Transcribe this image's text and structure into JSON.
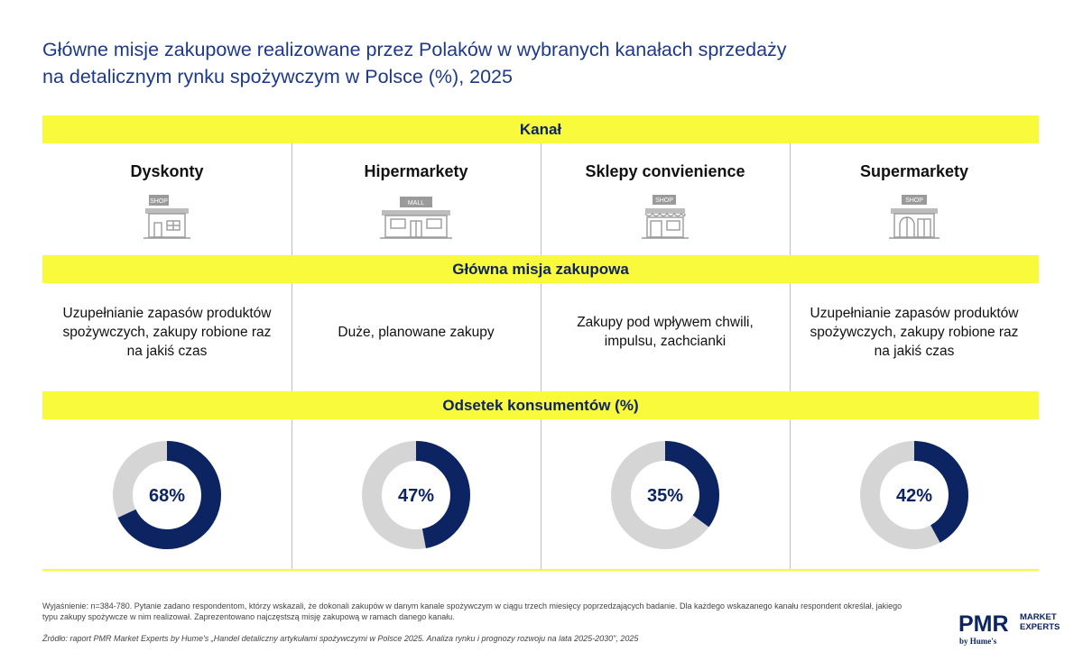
{
  "title_line1": "Główne misje zakupowe realizowane przez Polaków w wybranych kanałach sprzedaży",
  "title_line2": "na detalicznym rynku spożywczym w Polsce (%), 2025",
  "bands": {
    "kanal": "Kanał",
    "misja": "Główna misja zakupowa",
    "odsetek": "Odsetek konsumentów (%)"
  },
  "channels": [
    {
      "name": "Dyskonty",
      "icon": "shop-icon",
      "icon_label": "SHOP",
      "mission": "Uzupełnianie zapasów produktów spożywczych, zakupy robione raz na jakiś czas",
      "percent_label": "68%"
    },
    {
      "name": "Hipermarkety",
      "icon": "mall-icon",
      "icon_label": "MALL",
      "mission": "Duże, planowane zakupy",
      "percent_label": "47%"
    },
    {
      "name": "Sklepy convienience",
      "icon": "shop-awning-icon",
      "icon_label": "SHOP",
      "mission": "Zakupy pod wpływem chwili, impulsu, zachcianki",
      "percent_label": "35%"
    },
    {
      "name": "Supermarkety",
      "icon": "shop-arch-icon",
      "icon_label": "SHOP",
      "mission": "Uzupełnianie zapasów produktów spożywczych, zakupy robione raz na jakiś czas",
      "percent_label": "42%"
    }
  ],
  "chart_data": {
    "type": "pie",
    "categories": [
      "Dyskonty",
      "Hipermarkety",
      "Sklepy convienience",
      "Supermarkety"
    ],
    "values": [
      68,
      47,
      35,
      42
    ],
    "title": "Odsetek konsumentów (%)",
    "colors": {
      "filled": "#0c2461",
      "remainder": "#d5d5d5"
    }
  },
  "note": "Wyjaśnienie: n=384-780. Pytanie zadano respondentom, którzy wskazali, że dokonali zakupów w danym kanale spożywczym w ciągu trzech miesięcy poprzedzających badanie. Dla każdego wskazanego kanału respondent określał, jakiego typu zakupy spożywcze w nim realizował. Zaprezentowano najczęstszą misję zakupową w ramach danego kanału.",
  "source": "Źródło: raport PMR Market Experts by Hume's „Handel detaliczny artykułami spożywczymi w Polsce 2025. Analiza rynku i prognozy rozwoju na lata 2025-2030\", 2025",
  "logo": {
    "pmr": "PMR",
    "market": "MARKET",
    "experts": "EXPERTS",
    "by": "by Hume's"
  },
  "colors": {
    "title": "#1d3a8a",
    "band": "#fafa3c",
    "navy": "#0c2461",
    "gray": "#d5d5d5"
  }
}
